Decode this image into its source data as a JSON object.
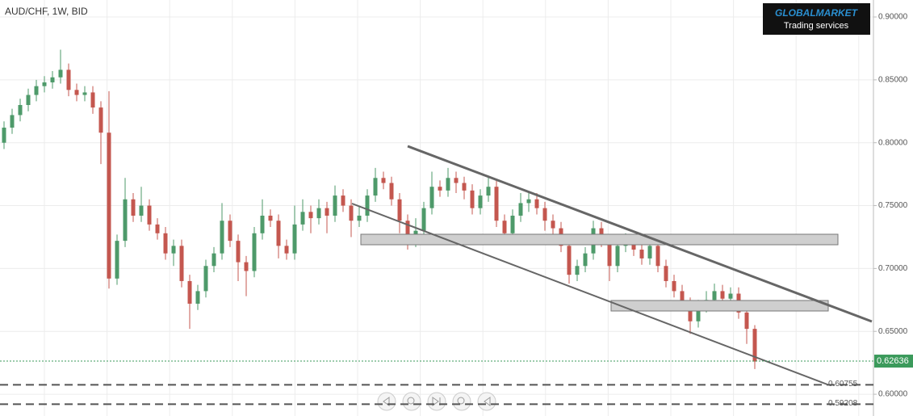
{
  "chart_data": {
    "type": "candlestick",
    "title": "AUD/CHF, 1W, BID",
    "open": [
      0.8,
      0.812,
      0.822,
      0.83,
      0.838,
      0.845,
      0.848,
      0.852,
      0.858,
      0.842,
      0.838,
      0.84,
      0.828,
      0.808,
      0.692,
      0.722,
      0.755,
      0.742,
      0.75,
      0.735,
      0.728,
      0.712,
      0.718,
      0.69,
      0.672,
      0.682,
      0.702,
      0.712,
      0.738,
      0.722,
      0.705,
      0.698,
      0.728,
      0.742,
      0.738,
      0.718,
      0.712,
      0.735,
      0.745,
      0.74,
      0.748,
      0.742,
      0.758,
      0.75,
      0.738,
      0.742,
      0.758,
      0.772,
      0.768,
      0.755,
      0.738,
      0.722,
      0.73,
      0.748,
      0.765,
      0.762,
      0.772,
      0.768,
      0.762,
      0.748,
      0.758,
      0.765,
      0.738,
      0.728,
      0.742,
      0.752,
      0.755,
      0.748,
      0.738,
      0.732,
      0.718,
      0.695,
      0.702,
      0.712,
      0.732,
      0.722,
      0.702,
      0.718,
      0.722,
      0.715,
      0.708,
      0.718,
      0.702,
      0.69,
      0.682,
      0.672,
      0.658,
      0.67,
      0.675,
      0.682,
      0.676,
      0.68,
      0.665,
      0.652
    ],
    "high": [
      0.817,
      0.827,
      0.835,
      0.843,
      0.85,
      0.853,
      0.857,
      0.874,
      0.863,
      0.847,
      0.845,
      0.845,
      0.833,
      0.841,
      0.727,
      0.772,
      0.76,
      0.765,
      0.755,
      0.74,
      0.733,
      0.723,
      0.723,
      0.695,
      0.687,
      0.707,
      0.717,
      0.752,
      0.743,
      0.727,
      0.71,
      0.733,
      0.755,
      0.747,
      0.743,
      0.723,
      0.75,
      0.755,
      0.75,
      0.755,
      0.753,
      0.766,
      0.763,
      0.755,
      0.75,
      0.763,
      0.78,
      0.777,
      0.773,
      0.76,
      0.743,
      0.74,
      0.753,
      0.777,
      0.77,
      0.78,
      0.777,
      0.773,
      0.767,
      0.763,
      0.773,
      0.77,
      0.743,
      0.747,
      0.76,
      0.76,
      0.76,
      0.753,
      0.743,
      0.737,
      0.723,
      0.707,
      0.717,
      0.738,
      0.737,
      0.727,
      0.725,
      0.728,
      0.727,
      0.72,
      0.727,
      0.723,
      0.707,
      0.695,
      0.687,
      0.677,
      0.675,
      0.682,
      0.688,
      0.687,
      0.685,
      0.685,
      0.668,
      0.655
    ],
    "low": [
      0.795,
      0.807,
      0.817,
      0.825,
      0.833,
      0.84,
      0.843,
      0.847,
      0.837,
      0.833,
      0.833,
      0.823,
      0.783,
      0.684,
      0.687,
      0.717,
      0.737,
      0.737,
      0.73,
      0.723,
      0.707,
      0.702,
      0.685,
      0.652,
      0.667,
      0.677,
      0.697,
      0.707,
      0.717,
      0.69,
      0.678,
      0.693,
      0.723,
      0.733,
      0.708,
      0.707,
      0.707,
      0.73,
      0.728,
      0.735,
      0.728,
      0.737,
      0.745,
      0.725,
      0.733,
      0.737,
      0.753,
      0.763,
      0.75,
      0.728,
      0.715,
      0.717,
      0.725,
      0.743,
      0.757,
      0.757,
      0.76,
      0.755,
      0.743,
      0.743,
      0.753,
      0.733,
      0.723,
      0.723,
      0.737,
      0.745,
      0.743,
      0.73,
      0.727,
      0.713,
      0.688,
      0.69,
      0.697,
      0.707,
      0.717,
      0.69,
      0.697,
      0.713,
      0.71,
      0.703,
      0.703,
      0.697,
      0.685,
      0.677,
      0.667,
      0.648,
      0.653,
      0.665,
      0.67,
      0.671,
      0.671,
      0.66,
      0.64,
      0.62
    ],
    "close": [
      0.812,
      0.822,
      0.83,
      0.838,
      0.845,
      0.848,
      0.852,
      0.858,
      0.842,
      0.838,
      0.84,
      0.828,
      0.808,
      0.692,
      0.722,
      0.755,
      0.742,
      0.75,
      0.735,
      0.728,
      0.712,
      0.718,
      0.69,
      0.672,
      0.682,
      0.702,
      0.712,
      0.738,
      0.722,
      0.705,
      0.698,
      0.728,
      0.742,
      0.738,
      0.718,
      0.712,
      0.735,
      0.745,
      0.74,
      0.748,
      0.742,
      0.758,
      0.75,
      0.738,
      0.742,
      0.758,
      0.772,
      0.768,
      0.755,
      0.738,
      0.722,
      0.73,
      0.748,
      0.765,
      0.762,
      0.772,
      0.768,
      0.762,
      0.748,
      0.758,
      0.765,
      0.738,
      0.728,
      0.742,
      0.752,
      0.755,
      0.748,
      0.738,
      0.732,
      0.718,
      0.695,
      0.702,
      0.712,
      0.732,
      0.722,
      0.702,
      0.718,
      0.722,
      0.715,
      0.708,
      0.718,
      0.702,
      0.69,
      0.682,
      0.672,
      0.658,
      0.67,
      0.675,
      0.682,
      0.676,
      0.68,
      0.665,
      0.652,
      0.626
    ],
    "up_color": "#4e9a6a",
    "down_color": "#c4574f",
    "ylim": [
      0.5827,
      0.9135
    ],
    "yticks": [
      {
        "value": 0.6,
        "label": "0.60000"
      },
      {
        "value": 0.65,
        "label": "0.65000"
      },
      {
        "value": 0.7,
        "label": "0.70000"
      },
      {
        "value": 0.75,
        "label": "0.75000"
      },
      {
        "value": 0.8,
        "label": "0.80000"
      },
      {
        "value": 0.85,
        "label": "0.85000"
      },
      {
        "value": 0.9,
        "label": "0.90000"
      }
    ],
    "grid": true,
    "price_lines": [
      0.60755,
      0.59208
    ],
    "current_price": 0.62636,
    "current_price_color": "#3b9a5b"
  },
  "logo": {
    "title": "GLOBALMARKET",
    "subtitle": "Trading services"
  }
}
